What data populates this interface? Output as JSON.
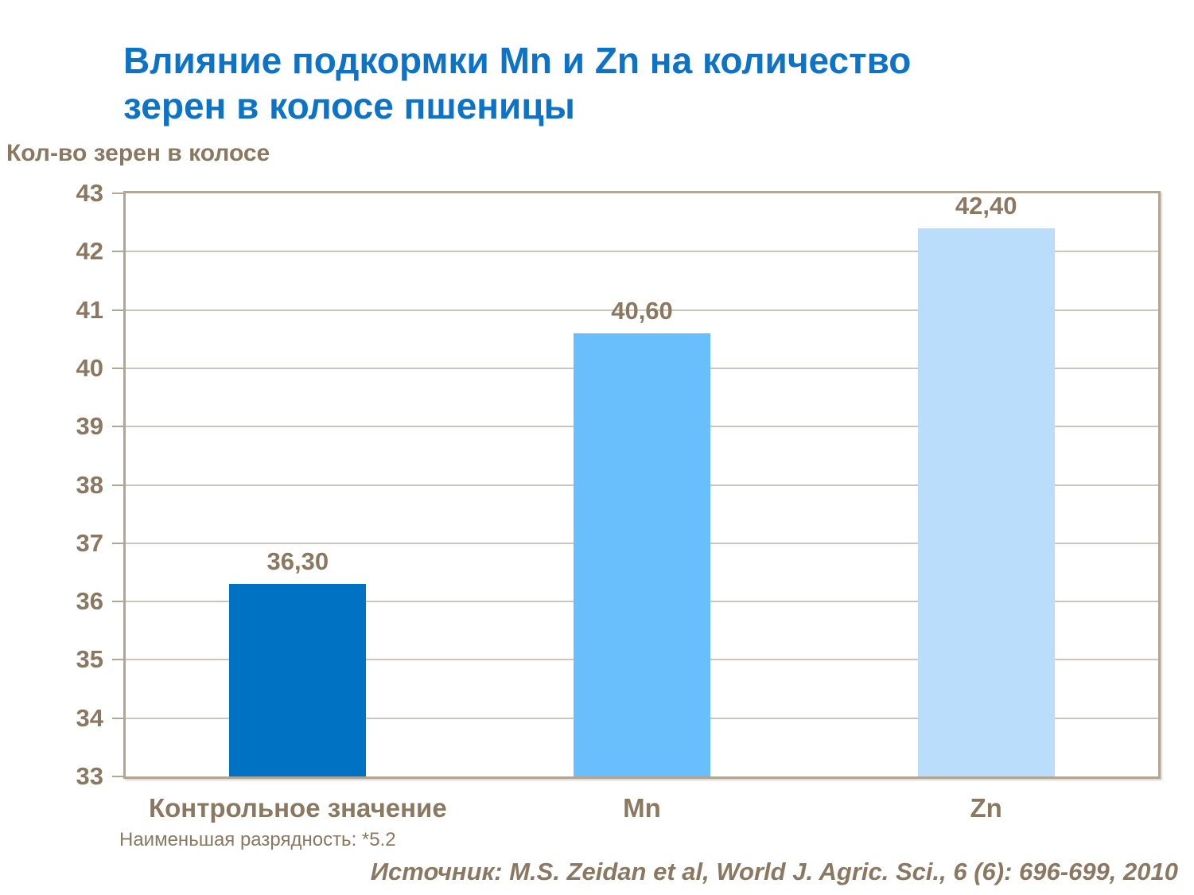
{
  "title": {
    "lines": [
      "Влияние подкормки Mn и Zn на количество",
      "зерен в колосе пшеницы"
    ]
  },
  "note": "Наименьшая разрядность: *5.2",
  "source": "Источник: M.S. Zeidan et al, World J. Agric. Sci., 6 (6): 696-699, 2010",
  "colors": {
    "title_blue": "#0d73c6",
    "text_brown": "#8a7861",
    "frame": "#b2a593",
    "gridline": "#cdc5ba"
  },
  "chart_data": {
    "type": "bar",
    "title": "Влияние подкормки Mn и Zn на количество зерен в колосе пшеницы",
    "ylabel": "Кол-во зерен в колосе",
    "xlabel": "",
    "categories": [
      "Контрольное значение",
      "Mn",
      "Zn"
    ],
    "values": [
      36.3,
      40.6,
      42.4
    ],
    "value_labels": [
      "36,30",
      "40,60",
      "42,40"
    ],
    "bar_colors": [
      "#0072c4",
      "#69bffc",
      "#b9ddfb"
    ],
    "ylim": [
      33,
      43
    ],
    "ytick_step": 1,
    "grid": true,
    "legend": false
  }
}
